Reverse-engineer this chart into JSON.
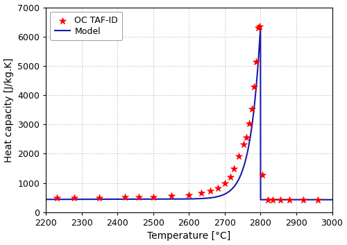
{
  "title": "",
  "xlabel": "Temperature [°C]",
  "ylabel": "Heat capacity [J/kg.K]",
  "xlim": [
    2200,
    3000
  ],
  "ylim": [
    0,
    7000
  ],
  "xticks": [
    2200,
    2300,
    2400,
    2500,
    2600,
    2700,
    2800,
    2900,
    3000
  ],
  "yticks": [
    0,
    1000,
    2000,
    3000,
    4000,
    5000,
    6000,
    7000
  ],
  "scatter_color": "#ff0000",
  "line_color": "#1a1aaa",
  "background_color": "#ffffff",
  "legend_labels": [
    "OC TAF-ID",
    "Model"
  ],
  "scatter_x": [
    2230,
    2280,
    2350,
    2420,
    2460,
    2500,
    2550,
    2600,
    2635,
    2660,
    2680,
    2700,
    2715,
    2725,
    2740,
    2752,
    2760,
    2768,
    2776,
    2782,
    2788,
    2793,
    2798,
    2805,
    2820,
    2835,
    2855,
    2880,
    2920,
    2960
  ],
  "scatter_y": [
    490,
    500,
    500,
    510,
    520,
    530,
    555,
    595,
    650,
    730,
    830,
    1000,
    1200,
    1480,
    1920,
    2310,
    2560,
    3020,
    3520,
    4280,
    5130,
    6300,
    6340,
    1270,
    430,
    420,
    425,
    430,
    430,
    435
  ],
  "grid_style": "dotted",
  "grid_color": "#b0b0b0",
  "marker_size": 7,
  "line_width": 1.5
}
